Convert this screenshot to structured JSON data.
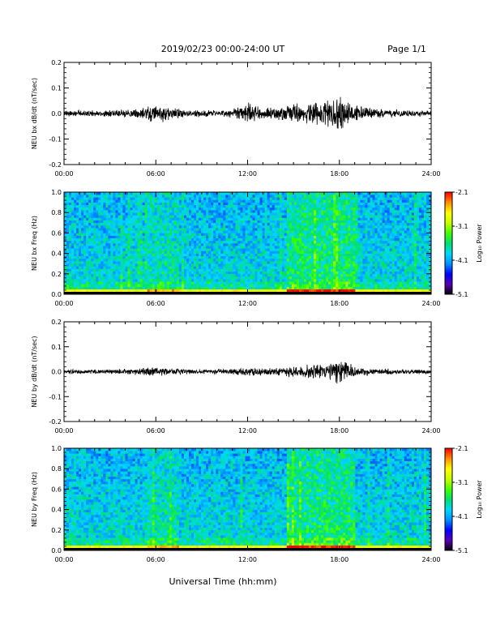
{
  "header": {
    "title": "2019/02/23  00:00-24:00 UT",
    "page": "Page 1/1"
  },
  "footer": {
    "xlabel": "Universal Time (hh:mm)"
  },
  "colors": {
    "trace": "#000000",
    "axis": "#000000",
    "background": "#ffffff",
    "colormap": [
      "#000000",
      "#5a00b0",
      "#0000ff",
      "#0090ff",
      "#00d8ff",
      "#00e070",
      "#40ff00",
      "#c8ff00",
      "#ffff00",
      "#ff9000",
      "#ff0000"
    ]
  },
  "chart_data": [
    {
      "type": "line",
      "ylabel": "NEU bx dB/dt (nT/sec)",
      "xlim": [
        "00:00",
        "24:00"
      ],
      "ylim": [
        -0.2,
        0.2
      ],
      "xticks": [
        "00:00",
        "06:00",
        "12:00",
        "18:00",
        "24:00"
      ],
      "yticks": [
        "-0.2",
        "-0.1",
        "0.0",
        "0.1",
        "0.2"
      ],
      "series": [
        {
          "x_hours": [
            0,
            1,
            2,
            3,
            4,
            5,
            6,
            7,
            8,
            9,
            10,
            11,
            12,
            13,
            14,
            15,
            16,
            17,
            18,
            19,
            20,
            21,
            22,
            23,
            24
          ],
          "amplitude_envelope": [
            0.012,
            0.012,
            0.011,
            0.012,
            0.014,
            0.02,
            0.033,
            0.025,
            0.014,
            0.012,
            0.012,
            0.016,
            0.04,
            0.018,
            0.022,
            0.035,
            0.04,
            0.05,
            0.065,
            0.03,
            0.02,
            0.015,
            0.012,
            0.012,
            0.01
          ]
        }
      ]
    },
    {
      "type": "heatmap",
      "ylabel": "NEU bx Freq (Hz)",
      "xlim": [
        "00:00",
        "24:00"
      ],
      "ylim": [
        0.0,
        1.0
      ],
      "xticks": [
        "00:00",
        "06:00",
        "12:00",
        "18:00",
        "24:00"
      ],
      "yticks": [
        "0.0",
        "0.2",
        "0.4",
        "0.6",
        "0.8",
        "1.0"
      ],
      "colorbar": {
        "label": "Log₁₀ Power",
        "range": [
          -5.1,
          -2.1
        ],
        "ticks": [
          "-2.1",
          "-3.1",
          "-4.1",
          "-5.1"
        ]
      }
    },
    {
      "type": "line",
      "ylabel": "NEU by dB/dt (nT/sec)",
      "xlim": [
        "00:00",
        "24:00"
      ],
      "ylim": [
        -0.2,
        0.2
      ],
      "xticks": [
        "00:00",
        "06:00",
        "12:00",
        "18:00",
        "24:00"
      ],
      "yticks": [
        "-0.2",
        "-0.1",
        "0.0",
        "0.1",
        "0.2"
      ],
      "series": [
        {
          "x_hours": [
            0,
            1,
            2,
            3,
            4,
            5,
            6,
            7,
            8,
            9,
            10,
            11,
            12,
            13,
            14,
            15,
            16,
            17,
            18,
            19,
            20,
            21,
            22,
            23,
            24
          ],
          "amplitude_envelope": [
            0.008,
            0.008,
            0.008,
            0.009,
            0.01,
            0.012,
            0.016,
            0.012,
            0.01,
            0.009,
            0.009,
            0.01,
            0.015,
            0.012,
            0.014,
            0.02,
            0.025,
            0.03,
            0.045,
            0.02,
            0.013,
            0.011,
            0.009,
            0.009,
            0.008
          ]
        }
      ]
    },
    {
      "type": "heatmap",
      "ylabel": "NEU by Freq (Hz)",
      "xlim": [
        "00:00",
        "24:00"
      ],
      "ylim": [
        0.0,
        1.0
      ],
      "xticks": [
        "00:00",
        "06:00",
        "12:00",
        "18:00",
        "24:00"
      ],
      "yticks": [
        "0.0",
        "0.2",
        "0.4",
        "0.6",
        "0.8",
        "1.0"
      ],
      "colorbar": {
        "label": "Log₁₀ Power",
        "range": [
          -5.1,
          -2.1
        ],
        "ticks": [
          "-2.1",
          "-3.1",
          "-4.1",
          "-5.1"
        ]
      }
    }
  ]
}
